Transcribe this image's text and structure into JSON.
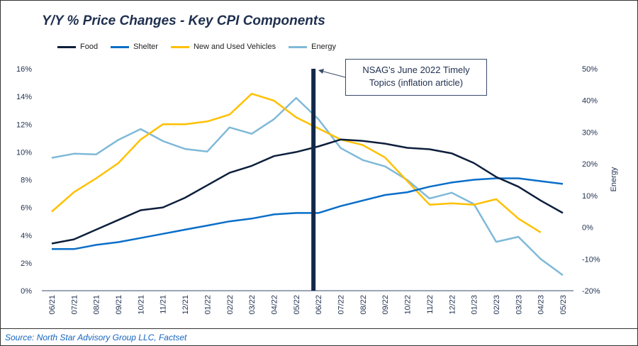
{
  "chart_data": {
    "type": "line",
    "title": "Y/Y % Price Changes - Key CPI Components",
    "categories": [
      "06/21",
      "07/21",
      "08/21",
      "09/21",
      "10/21",
      "11/21",
      "12/21",
      "01/22",
      "02/22",
      "03/22",
      "04/22",
      "05/22",
      "06/22",
      "07/22",
      "08/22",
      "09/22",
      "10/22",
      "11/22",
      "12/22",
      "01/23",
      "02/23",
      "03/23",
      "04/23",
      "05/23"
    ],
    "left_axis": {
      "ylim": [
        0,
        16
      ],
      "ticks": [
        "0%",
        "2%",
        "4%",
        "6%",
        "8%",
        "10%",
        "12%",
        "14%",
        "16%"
      ]
    },
    "right_axis": {
      "label": "Energy",
      "ylim": [
        -20,
        50
      ],
      "ticks": [
        "-20%",
        "-10%",
        "0%",
        "10%",
        "20%",
        "30%",
        "40%",
        "50%"
      ]
    },
    "series": [
      {
        "name": "Food",
        "axis": "left",
        "color": "#0d1f3c",
        "values": [
          3.4,
          3.7,
          4.4,
          5.1,
          5.8,
          6.0,
          6.7,
          7.6,
          8.5,
          9.0,
          9.7,
          10.0,
          10.4,
          10.9,
          10.8,
          10.6,
          10.3,
          10.2,
          9.9,
          9.2,
          8.2,
          7.5,
          6.5,
          5.6
        ]
      },
      {
        "name": "Shelter",
        "axis": "left",
        "color": "#0a6ec8",
        "values": [
          3.0,
          3.0,
          3.3,
          3.5,
          3.8,
          4.1,
          4.4,
          4.7,
          5.0,
          5.2,
          5.5,
          5.6,
          5.6,
          6.1,
          6.5,
          6.9,
          7.1,
          7.5,
          7.8,
          8.0,
          8.1,
          8.1,
          7.9,
          7.7
        ]
      },
      {
        "name": "New and Used Vehicles",
        "axis": "left",
        "color": "#ffc000",
        "values": [
          5.7,
          7.1,
          8.1,
          9.2,
          10.9,
          12.0,
          12.0,
          12.2,
          12.7,
          14.2,
          13.7,
          12.5,
          11.7,
          10.9,
          10.5,
          9.6,
          7.9,
          6.2,
          6.3,
          6.2,
          6.6,
          5.2,
          4.2,
          null
        ]
      },
      {
        "name": "Energy",
        "axis": "right",
        "color": "#7fb9d8",
        "values": [
          21.9,
          23.2,
          23.0,
          27.6,
          31.0,
          27.2,
          24.7,
          23.9,
          31.5,
          29.5,
          34.1,
          40.8,
          34.1,
          25.0,
          21.2,
          19.2,
          14.9,
          9.1,
          10.9,
          7.3,
          -4.6,
          -3.0,
          -10.0,
          -15.1
        ]
      }
    ],
    "marker": {
      "category": "06/22",
      "color": "#13294b"
    },
    "annotation": {
      "line1": "NSAG's June 2022 Timely",
      "line2": "Topics (inflation article)"
    },
    "legend": "top-left",
    "grid": false
  },
  "source": "Source: North Star Advisory Group LLC, Factset"
}
